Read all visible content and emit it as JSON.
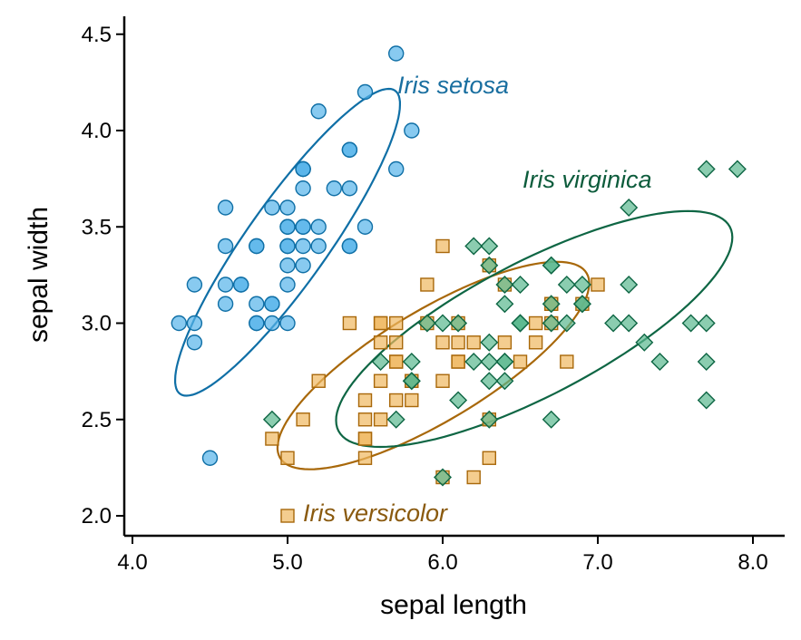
{
  "chart_data": {
    "type": "scatter",
    "title": "",
    "xlabel": "sepal length",
    "ylabel": "sepal width",
    "xlim": [
      3.95,
      8.2
    ],
    "ylim": [
      1.9,
      4.6
    ],
    "xticks": [
      "4.0",
      "5.0",
      "6.0",
      "7.0",
      "8.0"
    ],
    "yticks": [
      "2.0",
      "2.5",
      "3.0",
      "3.5",
      "4.0",
      "4.5"
    ],
    "grid": false,
    "legend": "none (direct labels)",
    "series": [
      {
        "name": "Iris setosa",
        "marker": "circle",
        "fill": "#56b4e9",
        "stroke": "#0f6fa6",
        "label_color": "#1a6fa0",
        "ellipse": {
          "cx": 5.0,
          "cy": 3.42,
          "semi_major": 1.05,
          "semi_minor": 0.24,
          "angle_deg": 48
        },
        "points": [
          [
            5.1,
            3.5
          ],
          [
            4.9,
            3.0
          ],
          [
            4.7,
            3.2
          ],
          [
            4.6,
            3.1
          ],
          [
            5.0,
            3.6
          ],
          [
            5.4,
            3.9
          ],
          [
            4.6,
            3.4
          ],
          [
            5.0,
            3.4
          ],
          [
            4.4,
            2.9
          ],
          [
            4.9,
            3.1
          ],
          [
            5.4,
            3.7
          ],
          [
            4.8,
            3.4
          ],
          [
            4.8,
            3.0
          ],
          [
            4.3,
            3.0
          ],
          [
            5.8,
            4.0
          ],
          [
            5.7,
            4.4
          ],
          [
            5.4,
            3.9
          ],
          [
            5.1,
            3.5
          ],
          [
            5.7,
            3.8
          ],
          [
            5.1,
            3.8
          ],
          [
            5.4,
            3.4
          ],
          [
            5.1,
            3.7
          ],
          [
            4.6,
            3.6
          ],
          [
            5.1,
            3.3
          ],
          [
            4.8,
            3.4
          ],
          [
            5.0,
            3.0
          ],
          [
            5.0,
            3.4
          ],
          [
            5.2,
            3.5
          ],
          [
            5.2,
            3.4
          ],
          [
            4.7,
            3.2
          ],
          [
            4.8,
            3.1
          ],
          [
            5.4,
            3.4
          ],
          [
            5.2,
            4.1
          ],
          [
            5.5,
            4.2
          ],
          [
            4.9,
            3.1
          ],
          [
            5.0,
            3.2
          ],
          [
            5.5,
            3.5
          ],
          [
            4.9,
            3.6
          ],
          [
            4.4,
            3.0
          ],
          [
            5.1,
            3.4
          ],
          [
            5.0,
            3.5
          ],
          [
            4.5,
            2.3
          ],
          [
            4.4,
            3.2
          ],
          [
            5.0,
            3.5
          ],
          [
            5.1,
            3.8
          ],
          [
            4.8,
            3.0
          ],
          [
            5.1,
            3.8
          ],
          [
            4.6,
            3.2
          ],
          [
            5.3,
            3.7
          ],
          [
            5.0,
            3.3
          ]
        ]
      },
      {
        "name": "Iris versicolor",
        "marker": "square",
        "fill": "#f0b860",
        "stroke": "#a8680a",
        "label_color": "#8a5a0f",
        "ellipse": {
          "cx": 5.94,
          "cy": 2.78,
          "semi_major": 1.1,
          "semi_minor": 0.3,
          "angle_deg": 25
        },
        "points": [
          [
            7.0,
            3.2
          ],
          [
            6.4,
            3.2
          ],
          [
            6.9,
            3.1
          ],
          [
            5.5,
            2.3
          ],
          [
            6.5,
            2.8
          ],
          [
            5.7,
            2.8
          ],
          [
            6.3,
            3.3
          ],
          [
            4.9,
            2.4
          ],
          [
            6.6,
            2.9
          ],
          [
            5.2,
            2.7
          ],
          [
            5.0,
            2.0
          ],
          [
            5.9,
            3.0
          ],
          [
            6.0,
            2.2
          ],
          [
            6.1,
            2.9
          ],
          [
            5.6,
            2.9
          ],
          [
            6.7,
            3.1
          ],
          [
            5.6,
            3.0
          ],
          [
            5.8,
            2.7
          ],
          [
            6.2,
            2.2
          ],
          [
            5.6,
            2.5
          ],
          [
            5.9,
            3.2
          ],
          [
            6.1,
            2.8
          ],
          [
            6.3,
            2.5
          ],
          [
            6.1,
            2.8
          ],
          [
            6.4,
            2.9
          ],
          [
            6.6,
            3.0
          ],
          [
            6.8,
            2.8
          ],
          [
            6.7,
            3.0
          ],
          [
            6.0,
            2.9
          ],
          [
            5.7,
            2.6
          ],
          [
            5.5,
            2.4
          ],
          [
            5.5,
            2.4
          ],
          [
            5.8,
            2.7
          ],
          [
            6.0,
            2.7
          ],
          [
            5.4,
            3.0
          ],
          [
            6.0,
            3.4
          ],
          [
            6.7,
            3.1
          ],
          [
            6.3,
            2.3
          ],
          [
            5.6,
            3.0
          ],
          [
            5.5,
            2.5
          ],
          [
            5.5,
            2.6
          ],
          [
            6.1,
            3.0
          ],
          [
            5.8,
            2.6
          ],
          [
            5.0,
            2.3
          ],
          [
            5.6,
            2.7
          ],
          [
            5.7,
            3.0
          ],
          [
            5.7,
            2.9
          ],
          [
            6.2,
            2.9
          ],
          [
            5.1,
            2.5
          ],
          [
            5.7,
            2.8
          ]
        ]
      },
      {
        "name": "Iris virginica",
        "marker": "diamond",
        "fill": "#5ab88f",
        "stroke": "#0e6644",
        "label_color": "#0d5c3c",
        "ellipse": {
          "cx": 6.59,
          "cy": 2.97,
          "semi_major": 1.37,
          "semi_minor": 0.36,
          "angle_deg": 22
        },
        "points": [
          [
            6.3,
            3.3
          ],
          [
            5.8,
            2.7
          ],
          [
            7.1,
            3.0
          ],
          [
            6.3,
            2.9
          ],
          [
            6.5,
            3.0
          ],
          [
            7.6,
            3.0
          ],
          [
            4.9,
            2.5
          ],
          [
            7.3,
            2.9
          ],
          [
            6.7,
            2.5
          ],
          [
            7.2,
            3.6
          ],
          [
            6.5,
            3.2
          ],
          [
            6.4,
            2.7
          ],
          [
            6.8,
            3.0
          ],
          [
            5.7,
            2.5
          ],
          [
            5.8,
            2.8
          ],
          [
            6.4,
            3.2
          ],
          [
            6.5,
            3.0
          ],
          [
            7.7,
            3.8
          ],
          [
            7.7,
            2.6
          ],
          [
            6.0,
            2.2
          ],
          [
            6.9,
            3.2
          ],
          [
            5.6,
            2.8
          ],
          [
            7.7,
            2.8
          ],
          [
            6.3,
            2.7
          ],
          [
            6.7,
            3.3
          ],
          [
            7.2,
            3.2
          ],
          [
            6.2,
            2.8
          ],
          [
            6.1,
            3.0
          ],
          [
            6.4,
            2.8
          ],
          [
            7.2,
            3.0
          ],
          [
            7.4,
            2.8
          ],
          [
            7.9,
            3.8
          ],
          [
            6.4,
            2.8
          ],
          [
            6.3,
            2.8
          ],
          [
            6.1,
            2.6
          ],
          [
            7.7,
            3.0
          ],
          [
            6.3,
            3.4
          ],
          [
            6.4,
            3.1
          ],
          [
            6.0,
            3.0
          ],
          [
            6.9,
            3.1
          ],
          [
            6.7,
            3.1
          ],
          [
            6.9,
            3.1
          ],
          [
            5.8,
            2.7
          ],
          [
            6.8,
            3.2
          ],
          [
            6.7,
            3.3
          ],
          [
            6.7,
            3.0
          ],
          [
            6.3,
            2.5
          ],
          [
            6.5,
            3.0
          ],
          [
            6.2,
            3.4
          ],
          [
            5.9,
            3.0
          ]
        ]
      }
    ]
  }
}
